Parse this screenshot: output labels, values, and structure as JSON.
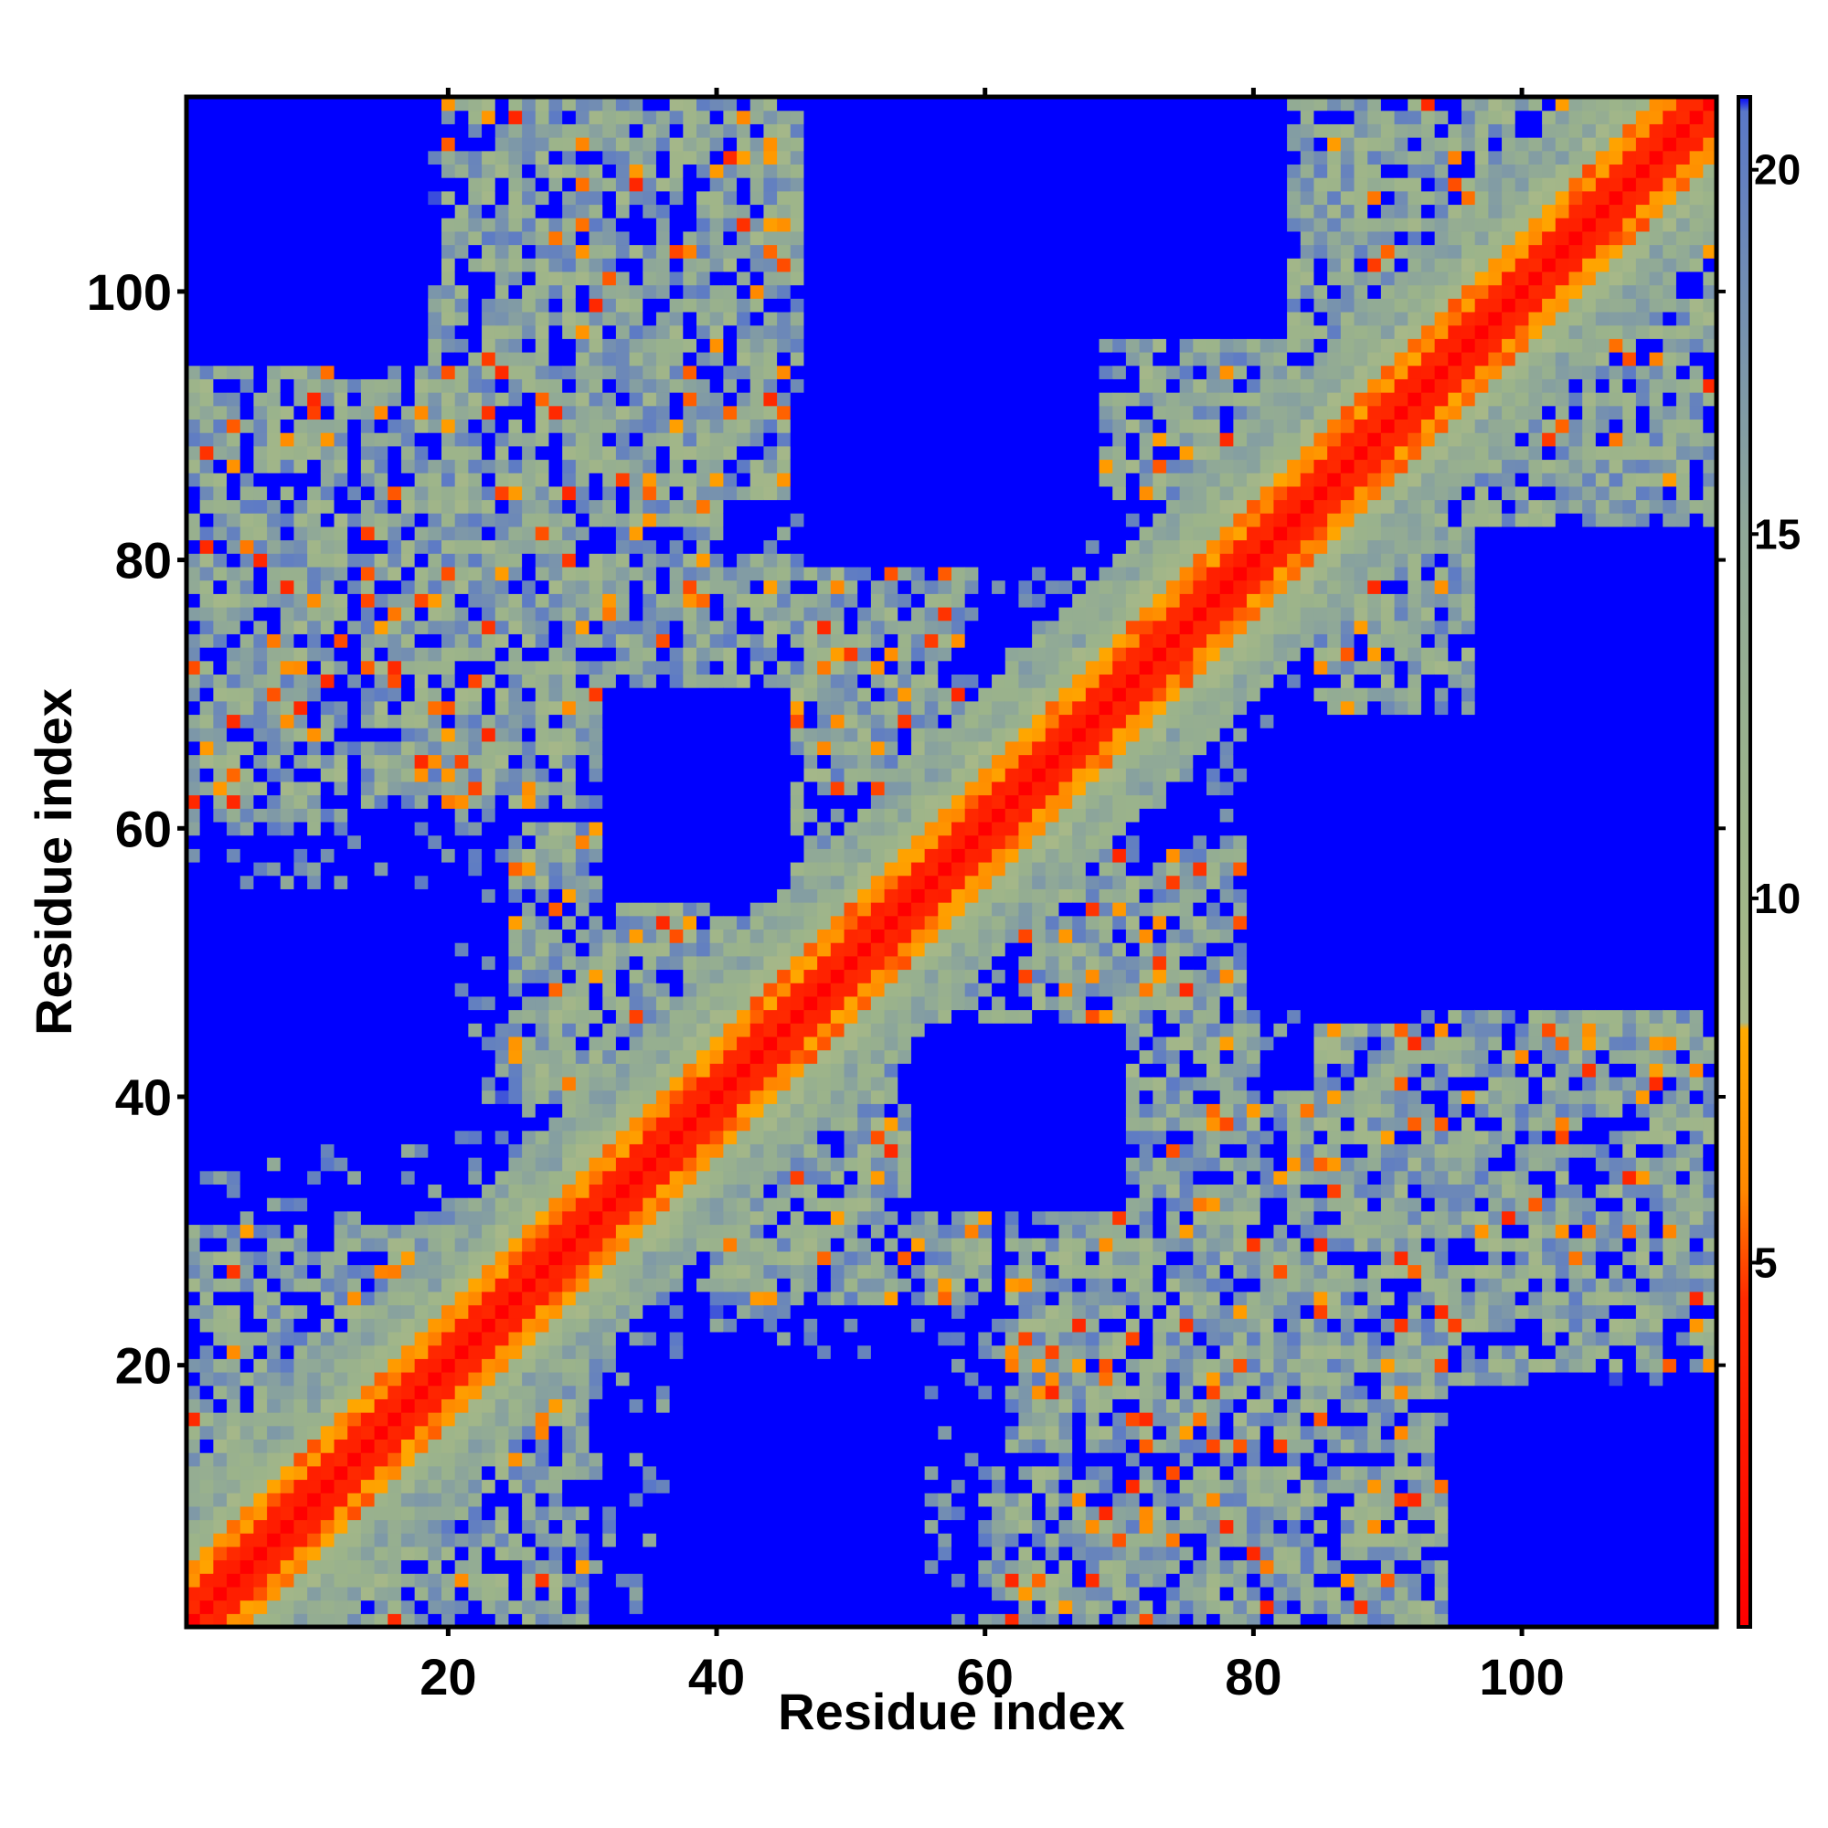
{
  "chart_data": {
    "type": "heatmap",
    "title": "",
    "xlabel": "Residue index",
    "ylabel": "Residue index",
    "xlim": [
      1,
      114
    ],
    "ylim": [
      1,
      114
    ],
    "n_residues": 114,
    "x_ticks": [
      20,
      40,
      60,
      80,
      100
    ],
    "y_ticks": [
      20,
      40,
      60,
      80,
      100
    ],
    "colorbar": {
      "ticks": [
        5,
        10,
        15,
        20
      ],
      "range": [
        0,
        21
      ],
      "description": "pairwise residue distance (Å); red = close, blue = far (saturated above ~21)",
      "stops": [
        {
          "value": 0,
          "color": "#ff0000"
        },
        {
          "value": 4.5,
          "color": "#ff2a00"
        },
        {
          "value": 6.0,
          "color": "#ff8800"
        },
        {
          "value": 8.2,
          "color": "#ffaa00"
        },
        {
          "value": 8.3,
          "color": "#a8b888"
        },
        {
          "value": 11,
          "color": "#9cb48a"
        },
        {
          "value": 15,
          "color": "#8fa898"
        },
        {
          "value": 19,
          "color": "#6c88b8"
        },
        {
          "value": 20.8,
          "color": "#5a78c8"
        },
        {
          "value": 21,
          "color": "#0000ff"
        }
      ]
    },
    "matrix_model": {
      "description": "Symmetric distance map summarised by contact bands (residue-index ranges) read from the image",
      "diagonal_band_width": 6,
      "contact_blocks": [
        {
          "i": [
            1,
            30
          ],
          "j": [
            1,
            30
          ],
          "level": "near"
        },
        {
          "i": [
            1,
            12
          ],
          "j": [
            60,
            100
          ],
          "level": "mid"
        },
        {
          "i": [
            14,
            40
          ],
          "j": [
            62,
            100
          ],
          "level": "mid"
        },
        {
          "i": [
            20,
            45
          ],
          "j": [
            85,
            114
          ],
          "level": "mid"
        },
        {
          "i": [
            30,
            60
          ],
          "j": [
            95,
            114
          ],
          "level": "mid"
        },
        {
          "i": [
            60,
            85
          ],
          "j": [
            85,
            114
          ],
          "level": "mid"
        },
        {
          "i": [
            40,
            62
          ],
          "j": [
            40,
            62
          ],
          "level": "near"
        },
        {
          "i": [
            85,
            114
          ],
          "j": [
            85,
            114
          ],
          "level": "near"
        },
        {
          "i": [
            40,
            60
          ],
          "j": [
            25,
            42
          ],
          "level": "mid"
        },
        {
          "i": [
            62,
            80
          ],
          "j": [
            38,
            58
          ],
          "level": "mid"
        }
      ],
      "void_blocks": [
        {
          "i": [
            37,
            55
          ],
          "j": [
            1,
            20
          ]
        },
        {
          "i": [
            47,
            65
          ],
          "j": [
            80,
            100
          ]
        },
        {
          "i": [
            55,
            70
          ],
          "j": [
            32,
            45
          ]
        },
        {
          "i": [
            82,
            100
          ],
          "j": [
            47,
            68
          ]
        },
        {
          "i": [
            95,
            114
          ],
          "j": [
            1,
            18
          ]
        },
        {
          "i": [
            97,
            114
          ],
          "j": [
            47,
            82
          ]
        }
      ]
    }
  }
}
